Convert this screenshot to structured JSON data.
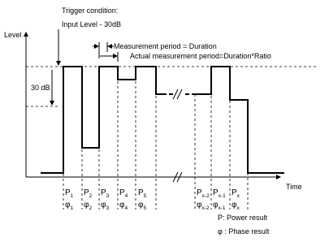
{
  "trigger": {
    "line1": "Trigger condition:",
    "line2": "Input Level - 30dB"
  },
  "axes": {
    "y_label": "Level",
    "x_label": "Time"
  },
  "annotations": {
    "measurement_period": "Measurement period = Duration",
    "actual_period": "Actual measurement period=Duration*Ratio",
    "level_drop": "30 dB"
  },
  "slots": [
    {
      "power": {
        "symbol": "P",
        "sub": "1"
      },
      "phase": {
        "symbol": "φ",
        "sub": "1"
      }
    },
    {
      "power": {
        "symbol": "P",
        "sub": "2"
      },
      "phase": {
        "symbol": "φ",
        "sub": "2"
      }
    },
    {
      "power": {
        "symbol": "P",
        "sub": "3"
      },
      "phase": {
        "symbol": "φ",
        "sub": "3"
      }
    },
    {
      "power": {
        "symbol": "P",
        "sub": "4"
      },
      "phase": {
        "symbol": "φ",
        "sub": "4"
      }
    },
    {
      "power": {
        "symbol": "P",
        "sub": "5"
      },
      "phase": {
        "symbol": "φ",
        "sub": "5"
      }
    },
    {
      "power": {
        "symbol": "P",
        "sub": "x-2"
      },
      "phase": {
        "symbol": "φ",
        "sub": "x-2"
      }
    },
    {
      "power": {
        "symbol": "P",
        "sub": "x-1"
      },
      "phase": {
        "symbol": "φ",
        "sub": "x-1"
      }
    },
    {
      "power": {
        "symbol": "P",
        "sub": "x"
      },
      "phase": {
        "symbol": "φ",
        "sub": "x"
      }
    }
  ],
  "legend": {
    "power": "P: Power result",
    "phase": "φ : Phase result"
  }
}
